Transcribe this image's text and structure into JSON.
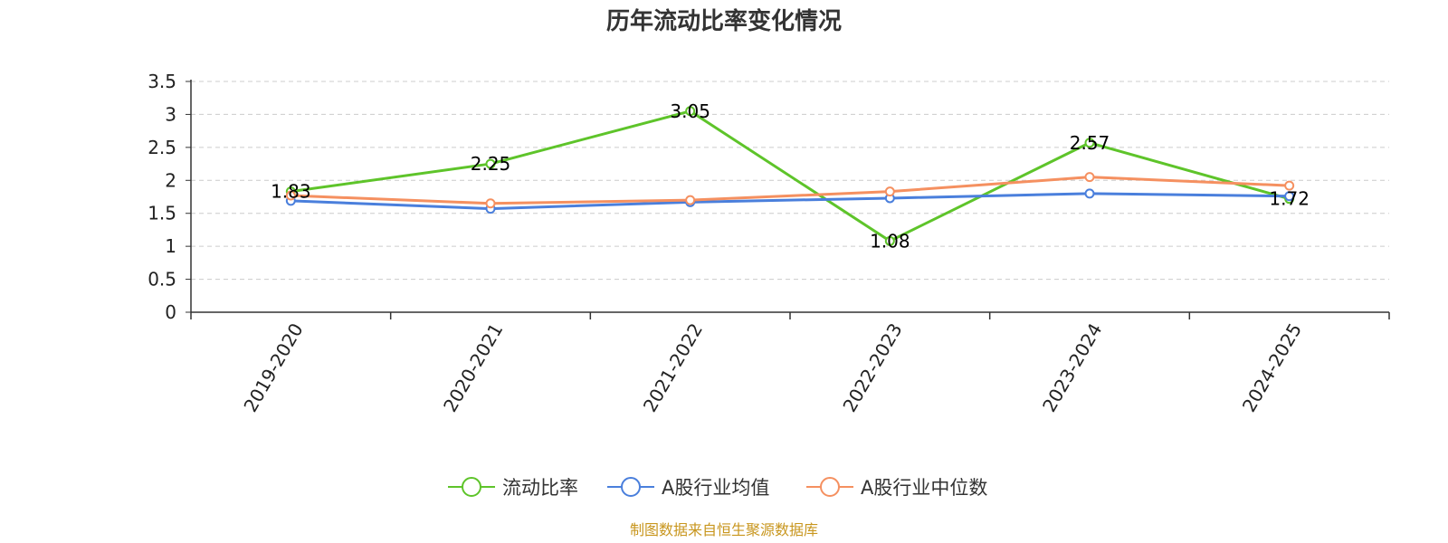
{
  "chart_data": {
    "type": "line",
    "title": "历年流动比率变化情况",
    "categories": [
      "2019-2020",
      "2020-2021",
      "2021-2022",
      "2022-2023",
      "2023-2024",
      "2024-2025"
    ],
    "ylim": [
      0,
      3.5
    ],
    "yticks": [
      0,
      0.5,
      1,
      1.5,
      2,
      2.5,
      3,
      3.5
    ],
    "grid": true,
    "legend_position": "bottom",
    "series": [
      {
        "name": "流动比率",
        "color": "#5ec42a",
        "values": [
          1.83,
          2.25,
          3.05,
          1.08,
          2.57,
          1.72
        ],
        "show_labels": true
      },
      {
        "name": "A股行业均值",
        "color": "#4a7fdc",
        "values": [
          1.69,
          1.57,
          1.67,
          1.73,
          1.8,
          1.76
        ],
        "show_labels": false
      },
      {
        "name": "A股行业中位数",
        "color": "#f59060",
        "values": [
          1.77,
          1.65,
          1.7,
          1.83,
          2.05,
          1.92
        ],
        "show_labels": false
      }
    ],
    "source": "制图数据来自恒生聚源数据库",
    "source_color": "#c8961e"
  }
}
